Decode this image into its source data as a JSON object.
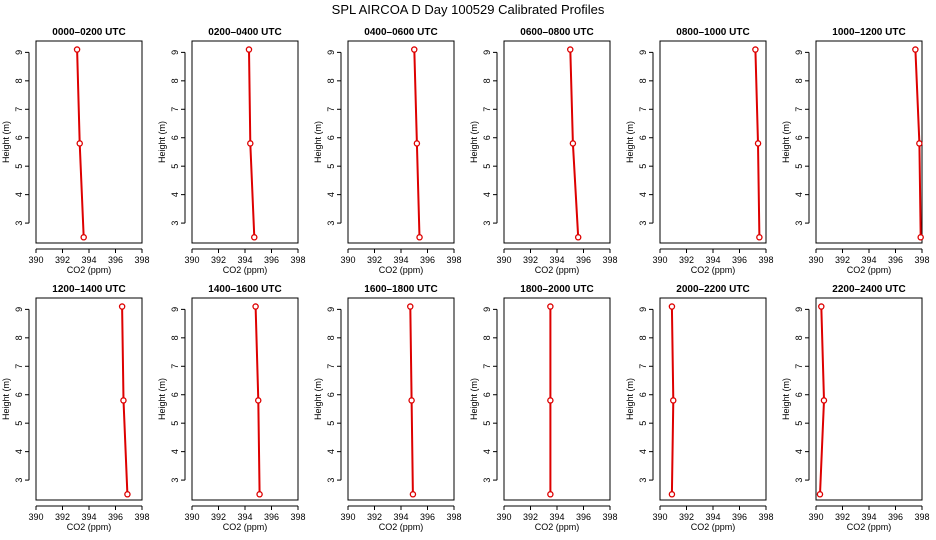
{
  "title": "SPL AIRCOA D  Day 100529  Calibrated Profiles",
  "colors": {
    "profile": "#dd0000",
    "axis": "#000000",
    "background": "#ffffff"
  },
  "chart_data": [
    {
      "type": "line",
      "title": "0000–0200 UTC",
      "xlabel": "CO2 (ppm)",
      "ylabel": "Height (m)",
      "xlim": [
        390,
        398
      ],
      "ylim": [
        2.3,
        9.4
      ],
      "xticks": [
        390,
        392,
        394,
        396,
        398
      ],
      "yticks": [
        3,
        4,
        5,
        6,
        7,
        8,
        9
      ],
      "points": [
        {
          "co2": 393.1,
          "height": 9.1
        },
        {
          "co2": 393.3,
          "height": 5.8
        },
        {
          "co2": 393.6,
          "height": 2.5
        }
      ]
    },
    {
      "type": "line",
      "title": "0200–0400 UTC",
      "xlabel": "CO2 (ppm)",
      "ylabel": "Height (m)",
      "xlim": [
        390,
        398
      ],
      "ylim": [
        2.3,
        9.4
      ],
      "xticks": [
        390,
        392,
        394,
        396,
        398
      ],
      "yticks": [
        3,
        4,
        5,
        6,
        7,
        8,
        9
      ],
      "points": [
        {
          "co2": 394.3,
          "height": 9.1
        },
        {
          "co2": 394.4,
          "height": 5.8
        },
        {
          "co2": 394.7,
          "height": 2.5
        }
      ]
    },
    {
      "type": "line",
      "title": "0400–0600 UTC",
      "xlabel": "CO2 (ppm)",
      "ylabel": "Height (m)",
      "xlim": [
        390,
        398
      ],
      "ylim": [
        2.3,
        9.4
      ],
      "xticks": [
        390,
        392,
        394,
        396,
        398
      ],
      "yticks": [
        3,
        4,
        5,
        6,
        7,
        8,
        9
      ],
      "points": [
        {
          "co2": 395.0,
          "height": 9.1
        },
        {
          "co2": 395.2,
          "height": 5.8
        },
        {
          "co2": 395.4,
          "height": 2.5
        }
      ]
    },
    {
      "type": "line",
      "title": "0600–0800 UTC",
      "xlabel": "CO2 (ppm)",
      "ylabel": "Height (m)",
      "xlim": [
        390,
        398
      ],
      "ylim": [
        2.3,
        9.4
      ],
      "xticks": [
        390,
        392,
        394,
        396,
        398
      ],
      "yticks": [
        3,
        4,
        5,
        6,
        7,
        8,
        9
      ],
      "points": [
        {
          "co2": 395.0,
          "height": 9.1
        },
        {
          "co2": 395.2,
          "height": 5.8
        },
        {
          "co2": 395.6,
          "height": 2.5
        }
      ]
    },
    {
      "type": "line",
      "title": "0800–1000 UTC",
      "xlabel": "CO2 (ppm)",
      "ylabel": "Height (m)",
      "xlim": [
        390,
        398
      ],
      "ylim": [
        2.3,
        9.4
      ],
      "xticks": [
        390,
        392,
        394,
        396,
        398
      ],
      "yticks": [
        3,
        4,
        5,
        6,
        7,
        8,
        9
      ],
      "points": [
        {
          "co2": 397.2,
          "height": 9.1
        },
        {
          "co2": 397.4,
          "height": 5.8
        },
        {
          "co2": 397.5,
          "height": 2.5
        }
      ]
    },
    {
      "type": "line",
      "title": "1000–1200 UTC",
      "xlabel": "CO2 (ppm)",
      "ylabel": "Height (m)",
      "xlim": [
        390,
        398
      ],
      "ylim": [
        2.3,
        9.4
      ],
      "xticks": [
        390,
        392,
        394,
        396,
        398
      ],
      "yticks": [
        3,
        4,
        5,
        6,
        7,
        8,
        9
      ],
      "points": [
        {
          "co2": 397.5,
          "height": 9.1
        },
        {
          "co2": 397.8,
          "height": 5.8
        },
        {
          "co2": 397.9,
          "height": 2.5
        }
      ]
    },
    {
      "type": "line",
      "title": "1200–1400 UTC",
      "xlabel": "CO2 (ppm)",
      "ylabel": "Height (m)",
      "xlim": [
        390,
        398
      ],
      "ylim": [
        2.3,
        9.4
      ],
      "xticks": [
        390,
        392,
        394,
        396,
        398
      ],
      "yticks": [
        3,
        4,
        5,
        6,
        7,
        8,
        9
      ],
      "points": [
        {
          "co2": 396.5,
          "height": 9.1
        },
        {
          "co2": 396.6,
          "height": 5.8
        },
        {
          "co2": 396.9,
          "height": 2.5
        }
      ]
    },
    {
      "type": "line",
      "title": "1400–1600 UTC",
      "xlabel": "CO2 (ppm)",
      "ylabel": "Height (m)",
      "xlim": [
        390,
        398
      ],
      "ylim": [
        2.3,
        9.4
      ],
      "xticks": [
        390,
        392,
        394,
        396,
        398
      ],
      "yticks": [
        3,
        4,
        5,
        6,
        7,
        8,
        9
      ],
      "points": [
        {
          "co2": 394.8,
          "height": 9.1
        },
        {
          "co2": 395.0,
          "height": 5.8
        },
        {
          "co2": 395.1,
          "height": 2.5
        }
      ]
    },
    {
      "type": "line",
      "title": "1600–1800 UTC",
      "xlabel": "CO2 (ppm)",
      "ylabel": "Height (m)",
      "xlim": [
        390,
        398
      ],
      "ylim": [
        2.3,
        9.4
      ],
      "xticks": [
        390,
        392,
        394,
        396,
        398
      ],
      "yticks": [
        3,
        4,
        5,
        6,
        7,
        8,
        9
      ],
      "points": [
        {
          "co2": 394.7,
          "height": 9.1
        },
        {
          "co2": 394.8,
          "height": 5.8
        },
        {
          "co2": 394.9,
          "height": 2.5
        }
      ]
    },
    {
      "type": "line",
      "title": "1800–2000 UTC",
      "xlabel": "CO2 (ppm)",
      "ylabel": "Height (m)",
      "xlim": [
        390,
        398
      ],
      "ylim": [
        2.3,
        9.4
      ],
      "xticks": [
        390,
        392,
        394,
        396,
        398
      ],
      "yticks": [
        3,
        4,
        5,
        6,
        7,
        8,
        9
      ],
      "points": [
        {
          "co2": 393.5,
          "height": 9.1
        },
        {
          "co2": 393.5,
          "height": 5.8
        },
        {
          "co2": 393.5,
          "height": 2.5
        }
      ]
    },
    {
      "type": "line",
      "title": "2000–2200 UTC",
      "xlabel": "CO2 (ppm)",
      "ylabel": "Height (m)",
      "xlim": [
        390,
        398
      ],
      "ylim": [
        2.3,
        9.4
      ],
      "xticks": [
        390,
        392,
        394,
        396,
        398
      ],
      "yticks": [
        3,
        4,
        5,
        6,
        7,
        8,
        9
      ],
      "points": [
        {
          "co2": 390.9,
          "height": 9.1
        },
        {
          "co2": 391.0,
          "height": 5.8
        },
        {
          "co2": 390.9,
          "height": 2.5
        }
      ]
    },
    {
      "type": "line",
      "title": "2200–2400 UTC",
      "xlabel": "CO2 (ppm)",
      "ylabel": "Height (m)",
      "xlim": [
        390,
        398
      ],
      "ylim": [
        2.3,
        9.4
      ],
      "xticks": [
        390,
        392,
        394,
        396,
        398
      ],
      "yticks": [
        3,
        4,
        5,
        6,
        7,
        8,
        9
      ],
      "points": [
        {
          "co2": 390.4,
          "height": 9.1
        },
        {
          "co2": 390.6,
          "height": 5.8
        },
        {
          "co2": 390.3,
          "height": 2.5
        }
      ]
    }
  ]
}
